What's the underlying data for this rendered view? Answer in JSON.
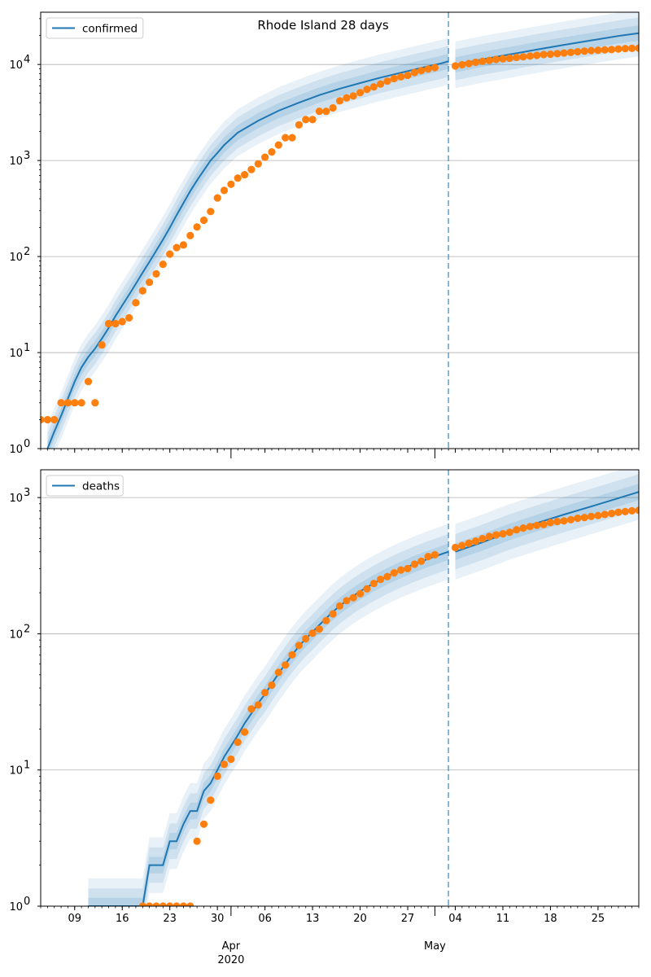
{
  "title": "Rhode Island 28 days",
  "colors": {
    "line": "#1f77b4",
    "obs": "#ff7f0e",
    "band": "#1f77b4",
    "grid": "#b0b0b0",
    "vline": "#1f77b4"
  },
  "x_axis": {
    "day_ticks": [
      {
        "date": "2020-03-09",
        "label": "09"
      },
      {
        "date": "2020-03-16",
        "label": "16"
      },
      {
        "date": "2020-03-23",
        "label": "23"
      },
      {
        "date": "2020-03-30",
        "label": "30"
      },
      {
        "date": "2020-04-06",
        "label": "06"
      },
      {
        "date": "2020-04-13",
        "label": "13"
      },
      {
        "date": "2020-04-20",
        "label": "20"
      },
      {
        "date": "2020-04-27",
        "label": "27"
      },
      {
        "date": "2020-05-04",
        "label": "04"
      },
      {
        "date": "2020-05-11",
        "label": "11"
      },
      {
        "date": "2020-05-18",
        "label": "18"
      },
      {
        "date": "2020-05-25",
        "label": "25"
      }
    ],
    "month_labels": [
      {
        "date": "2020-04-01",
        "label": "Apr",
        "year": "2020"
      },
      {
        "date": "2020-05-01",
        "label": "May",
        "year": ""
      }
    ],
    "range": [
      "2020-03-04",
      "2020-05-31"
    ],
    "grid": false
  },
  "chart_data": [
    {
      "type": "line",
      "panel": "top",
      "title": "Rhode Island 28 days",
      "legend": "confirmed",
      "legend_position": "upper-left",
      "y_scale": "log",
      "ylim": [
        1,
        35000
      ],
      "y_ticks": [
        {
          "value": 1,
          "base": "10",
          "exp": "0"
        },
        {
          "value": 10,
          "base": "10",
          "exp": "1"
        },
        {
          "value": 100,
          "base": "10",
          "exp": "2"
        },
        {
          "value": 1000,
          "base": "10",
          "exp": "3"
        },
        {
          "value": 10000,
          "base": "10",
          "exp": "4"
        }
      ],
      "y_grid": true,
      "forecast_start": "2020-05-03",
      "fit_line": [
        [
          "2020-03-05",
          1
        ],
        [
          "2020-03-06",
          1.5
        ],
        [
          "2020-03-07",
          2.2
        ],
        [
          "2020-03-08",
          3.3
        ],
        [
          "2020-03-09",
          5
        ],
        [
          "2020-03-10",
          7
        ],
        [
          "2020-03-11",
          9
        ],
        [
          "2020-03-12",
          11
        ],
        [
          "2020-03-13",
          14
        ],
        [
          "2020-03-14",
          18
        ],
        [
          "2020-03-15",
          24
        ],
        [
          "2020-03-16",
          31
        ],
        [
          "2020-03-17",
          40
        ],
        [
          "2020-03-18",
          52
        ],
        [
          "2020-03-19",
          68
        ],
        [
          "2020-03-20",
          88
        ],
        [
          "2020-03-21",
          115
        ],
        [
          "2020-03-22",
          150
        ],
        [
          "2020-03-23",
          200
        ],
        [
          "2020-03-24",
          270
        ],
        [
          "2020-03-25",
          360
        ],
        [
          "2020-03-26",
          480
        ],
        [
          "2020-03-27",
          620
        ],
        [
          "2020-03-28",
          790
        ],
        [
          "2020-03-29",
          1000
        ],
        [
          "2020-03-30",
          1200
        ],
        [
          "2020-03-31",
          1450
        ],
        [
          "2020-04-02",
          1950
        ],
        [
          "2020-04-05",
          2600
        ],
        [
          "2020-04-08",
          3300
        ],
        [
          "2020-04-11",
          4000
        ],
        [
          "2020-04-14",
          4800
        ],
        [
          "2020-04-17",
          5600
        ],
        [
          "2020-04-20",
          6400
        ],
        [
          "2020-04-23",
          7300
        ],
        [
          "2020-04-26",
          8200
        ],
        [
          "2020-04-29",
          9200
        ],
        [
          "2020-05-02",
          10300
        ],
        [
          "2020-05-03",
          10800
        ]
      ],
      "forecast_line": [
        [
          "2020-05-04",
          9900
        ],
        [
          "2020-05-08",
          11300
        ],
        [
          "2020-05-12",
          12700
        ],
        [
          "2020-05-16",
          14300
        ],
        [
          "2020-05-20",
          16000
        ],
        [
          "2020-05-24",
          17800
        ],
        [
          "2020-05-28",
          19800
        ],
        [
          "2020-05-31",
          21200
        ]
      ],
      "band_factors": [
        1.2,
        1.45,
        1.75
      ],
      "observed": [
        [
          "2020-03-04",
          2
        ],
        [
          "2020-03-05",
          2
        ],
        [
          "2020-03-06",
          2
        ],
        [
          "2020-03-07",
          3
        ],
        [
          "2020-03-08",
          3
        ],
        [
          "2020-03-09",
          3
        ],
        [
          "2020-03-10",
          3
        ],
        [
          "2020-03-11",
          5
        ],
        [
          "2020-03-12",
          3
        ],
        [
          "2020-03-13",
          12
        ],
        [
          "2020-03-14",
          20
        ],
        [
          "2020-03-15",
          20
        ],
        [
          "2020-03-16",
          21
        ],
        [
          "2020-03-17",
          23
        ],
        [
          "2020-03-18",
          33
        ],
        [
          "2020-03-19",
          44
        ],
        [
          "2020-03-20",
          54
        ],
        [
          "2020-03-21",
          66
        ],
        [
          "2020-03-22",
          83
        ],
        [
          "2020-03-23",
          106
        ],
        [
          "2020-03-24",
          124
        ],
        [
          "2020-03-25",
          132
        ],
        [
          "2020-03-26",
          165
        ],
        [
          "2020-03-27",
          203
        ],
        [
          "2020-03-28",
          239
        ],
        [
          "2020-03-29",
          294
        ],
        [
          "2020-03-30",
          408
        ],
        [
          "2020-03-31",
          488
        ],
        [
          "2020-04-01",
          566
        ],
        [
          "2020-04-02",
          657
        ],
        [
          "2020-04-03",
          711
        ],
        [
          "2020-04-04",
          806
        ],
        [
          "2020-04-05",
          922
        ],
        [
          "2020-04-06",
          1082
        ],
        [
          "2020-04-07",
          1229
        ],
        [
          "2020-04-08",
          1450
        ],
        [
          "2020-04-09",
          1727
        ],
        [
          "2020-04-10",
          1727
        ],
        [
          "2020-04-11",
          2349
        ],
        [
          "2020-04-12",
          2665
        ],
        [
          "2020-04-13",
          2665
        ],
        [
          "2020-04-14",
          3251
        ],
        [
          "2020-04-15",
          3251
        ],
        [
          "2020-04-16",
          3529
        ],
        [
          "2020-04-17",
          4177
        ],
        [
          "2020-04-18",
          4491
        ],
        [
          "2020-04-19",
          4706
        ],
        [
          "2020-04-20",
          5090
        ],
        [
          "2020-04-21",
          5500
        ],
        [
          "2020-04-22",
          5841
        ],
        [
          "2020-04-23",
          6256
        ],
        [
          "2020-04-24",
          6699
        ],
        [
          "2020-04-25",
          7129
        ],
        [
          "2020-04-26",
          7439
        ],
        [
          "2020-04-27",
          7708
        ],
        [
          "2020-04-28",
          8247
        ],
        [
          "2020-04-29",
          8621
        ],
        [
          "2020-04-30",
          8962
        ],
        [
          "2020-05-01",
          9289
        ],
        [
          "2020-05-04",
          9652
        ],
        [
          "2020-05-05",
          9933
        ],
        [
          "2020-05-06",
          10205
        ],
        [
          "2020-05-07",
          10530
        ],
        [
          "2020-05-08",
          10779
        ],
        [
          "2020-05-09",
          11018
        ],
        [
          "2020-05-10",
          11274
        ],
        [
          "2020-05-11",
          11463
        ],
        [
          "2020-05-12",
          11614
        ],
        [
          "2020-05-13",
          11835
        ],
        [
          "2020-05-14",
          12016
        ],
        [
          "2020-05-15",
          12219
        ],
        [
          "2020-05-16",
          12434
        ],
        [
          "2020-05-17",
          12674
        ],
        [
          "2020-05-18",
          12795
        ],
        [
          "2020-05-19",
          12951
        ],
        [
          "2020-05-20",
          13173
        ],
        [
          "2020-05-21",
          13356
        ],
        [
          "2020-05-22",
          13571
        ],
        [
          "2020-05-23",
          13736
        ],
        [
          "2020-05-24",
          13952
        ],
        [
          "2020-05-25",
          14065
        ],
        [
          "2020-05-26",
          14210
        ],
        [
          "2020-05-27",
          14291
        ],
        [
          "2020-05-28",
          14494
        ],
        [
          "2020-05-29",
          14635
        ],
        [
          "2020-05-30",
          14723
        ],
        [
          "2020-05-31",
          14810
        ]
      ]
    },
    {
      "type": "line",
      "panel": "bottom",
      "title": "",
      "legend": "deaths",
      "legend_position": "upper-left",
      "y_scale": "log",
      "ylim": [
        1,
        1600
      ],
      "y_ticks": [
        {
          "value": 1,
          "base": "10",
          "exp": "0"
        },
        {
          "value": 10,
          "base": "10",
          "exp": "1"
        },
        {
          "value": 100,
          "base": "10",
          "exp": "2"
        },
        {
          "value": 1000,
          "base": "10",
          "exp": "3"
        }
      ],
      "y_grid": true,
      "forecast_start": "2020-05-03",
      "fit_line": [
        [
          "2020-03-11",
          1
        ],
        [
          "2020-03-19",
          1
        ],
        [
          "2020-03-20",
          2
        ],
        [
          "2020-03-21",
          2
        ],
        [
          "2020-03-22",
          2
        ],
        [
          "2020-03-23",
          3
        ],
        [
          "2020-03-24",
          3
        ],
        [
          "2020-03-25",
          4
        ],
        [
          "2020-03-26",
          5
        ],
        [
          "2020-03-27",
          5
        ],
        [
          "2020-03-28",
          7
        ],
        [
          "2020-03-29",
          8
        ],
        [
          "2020-03-30",
          10
        ],
        [
          "2020-03-31",
          12.5
        ],
        [
          "2020-04-01",
          15
        ],
        [
          "2020-04-02",
          18
        ],
        [
          "2020-04-03",
          22
        ],
        [
          "2020-04-04",
          26
        ],
        [
          "2020-04-05",
          31
        ],
        [
          "2020-04-06",
          36
        ],
        [
          "2020-04-07",
          43
        ],
        [
          "2020-04-08",
          51
        ],
        [
          "2020-04-09",
          60
        ],
        [
          "2020-04-10",
          70
        ],
        [
          "2020-04-11",
          81
        ],
        [
          "2020-04-12",
          92
        ],
        [
          "2020-04-13",
          103
        ],
        [
          "2020-04-14",
          116
        ],
        [
          "2020-04-15",
          130
        ],
        [
          "2020-04-16",
          145
        ],
        [
          "2020-04-17",
          160
        ],
        [
          "2020-04-18",
          175
        ],
        [
          "2020-04-19",
          190
        ],
        [
          "2020-04-20",
          205
        ],
        [
          "2020-04-22",
          235
        ],
        [
          "2020-04-24",
          265
        ],
        [
          "2020-04-26",
          295
        ],
        [
          "2020-04-28",
          325
        ],
        [
          "2020-04-30",
          355
        ],
        [
          "2020-05-02",
          385
        ],
        [
          "2020-05-03",
          400
        ]
      ],
      "forecast_line": [
        [
          "2020-05-04",
          400
        ],
        [
          "2020-05-08",
          470
        ],
        [
          "2020-05-12",
          560
        ],
        [
          "2020-05-16",
          650
        ],
        [
          "2020-05-20",
          750
        ],
        [
          "2020-05-24",
          860
        ],
        [
          "2020-05-28",
          990
        ],
        [
          "2020-05-31",
          1100
        ]
      ],
      "band_factors": [
        1.15,
        1.35,
        1.6
      ],
      "observed": [
        [
          "2020-03-19",
          1
        ],
        [
          "2020-03-20",
          1
        ],
        [
          "2020-03-21",
          1
        ],
        [
          "2020-03-22",
          1
        ],
        [
          "2020-03-23",
          1
        ],
        [
          "2020-03-24",
          1
        ],
        [
          "2020-03-25",
          1
        ],
        [
          "2020-03-26",
          1
        ],
        [
          "2020-03-27",
          3
        ],
        [
          "2020-03-28",
          4
        ],
        [
          "2020-03-29",
          6
        ],
        [
          "2020-03-30",
          9
        ],
        [
          "2020-03-31",
          11
        ],
        [
          "2020-04-01",
          12
        ],
        [
          "2020-04-02",
          16
        ],
        [
          "2020-04-03",
          19
        ],
        [
          "2020-04-04",
          28
        ],
        [
          "2020-04-05",
          30
        ],
        [
          "2020-04-06",
          37
        ],
        [
          "2020-04-07",
          42
        ],
        [
          "2020-04-08",
          52
        ],
        [
          "2020-04-09",
          59
        ],
        [
          "2020-04-10",
          70
        ],
        [
          "2020-04-11",
          82
        ],
        [
          "2020-04-12",
          92
        ],
        [
          "2020-04-13",
          101
        ],
        [
          "2020-04-14",
          108
        ],
        [
          "2020-04-15",
          125
        ],
        [
          "2020-04-16",
          140
        ],
        [
          "2020-04-17",
          160
        ],
        [
          "2020-04-18",
          175
        ],
        [
          "2020-04-19",
          184
        ],
        [
          "2020-04-20",
          197
        ],
        [
          "2020-04-21",
          214
        ],
        [
          "2020-04-22",
          234
        ],
        [
          "2020-04-23",
          251
        ],
        [
          "2020-04-24",
          263
        ],
        [
          "2020-04-25",
          280
        ],
        [
          "2020-04-26",
          294
        ],
        [
          "2020-04-27",
          301
        ],
        [
          "2020-04-28",
          324
        ],
        [
          "2020-04-29",
          341
        ],
        [
          "2020-04-30",
          369
        ],
        [
          "2020-05-01",
          380
        ],
        [
          "2020-05-04",
          430
        ],
        [
          "2020-05-05",
          444
        ],
        [
          "2020-05-06",
          462
        ],
        [
          "2020-05-07",
          479
        ],
        [
          "2020-05-08",
          499
        ],
        [
          "2020-05-09",
          518
        ],
        [
          "2020-05-10",
          532
        ],
        [
          "2020-05-11",
          542
        ],
        [
          "2020-05-12",
          556
        ],
        [
          "2020-05-13",
          580
        ],
        [
          "2020-05-14",
          597
        ],
        [
          "2020-05-15",
          612
        ],
        [
          "2020-05-16",
          625
        ],
        [
          "2020-05-17",
          634
        ],
        [
          "2020-05-18",
          655
        ],
        [
          "2020-05-19",
          667
        ],
        [
          "2020-05-20",
          674
        ],
        [
          "2020-05-21",
          688
        ],
        [
          "2020-05-22",
          704
        ],
        [
          "2020-05-23",
          713
        ],
        [
          "2020-05-24",
          727
        ],
        [
          "2020-05-25",
          738
        ],
        [
          "2020-05-26",
          751
        ],
        [
          "2020-05-27",
          765
        ],
        [
          "2020-05-28",
          780
        ],
        [
          "2020-05-29",
          789
        ],
        [
          "2020-05-30",
          799
        ],
        [
          "2020-05-31",
          806
        ]
      ]
    }
  ]
}
